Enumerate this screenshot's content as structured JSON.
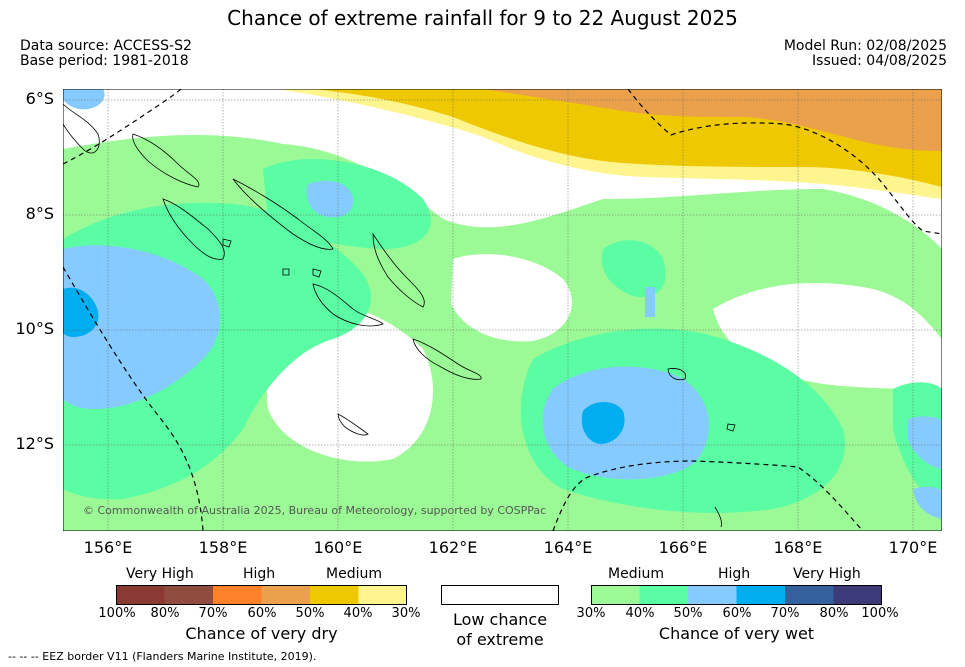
{
  "title": "Chance of extreme rainfall for 9 to 22 August 2025",
  "data_source": "Data source: ACCESS-S2",
  "base_period": "Base period: 1981-2018",
  "model_run": "Model Run: 02/08/2025",
  "issued": "Issued: 04/08/2025",
  "lat_labels": [
    "6°S",
    "8°S",
    "10°S",
    "12°S"
  ],
  "lon_labels": [
    "156°E",
    "158°E",
    "160°E",
    "162°E",
    "164°E",
    "166°E",
    "168°E",
    "170°E"
  ],
  "copyright": "© Commonwealth of Australia 2025, Bureau of Meteorology, supported by COSPPac",
  "dry_legend": {
    "categories": [
      "Very High",
      "High",
      "Medium"
    ],
    "ticks": [
      "100%",
      "80%",
      "70%",
      "60%",
      "50%",
      "40%",
      "30%"
    ],
    "colors": [
      "#8b3a33",
      "#8f4c3f",
      "#fd8129",
      "#eba04b",
      "#eec800",
      "#fef58f"
    ],
    "caption": "Chance of very dry"
  },
  "low_legend": {
    "caption_line1": "Low chance",
    "caption_line2": "of extreme",
    "color": "#ffffff"
  },
  "wet_legend": {
    "categories": [
      "Medium",
      "High",
      "Very High"
    ],
    "ticks": [
      "30%",
      "40%",
      "50%",
      "60%",
      "70%",
      "80%",
      "100%"
    ],
    "colors": [
      "#9cfa96",
      "#5afca4",
      "#86cbff",
      "#00aeef",
      "#35609e",
      "#3d3a7a"
    ],
    "caption": "Chance of very wet"
  },
  "footnote": "-- -- -- EEZ border V11 (Flanders Marine Institute, 2019)."
}
